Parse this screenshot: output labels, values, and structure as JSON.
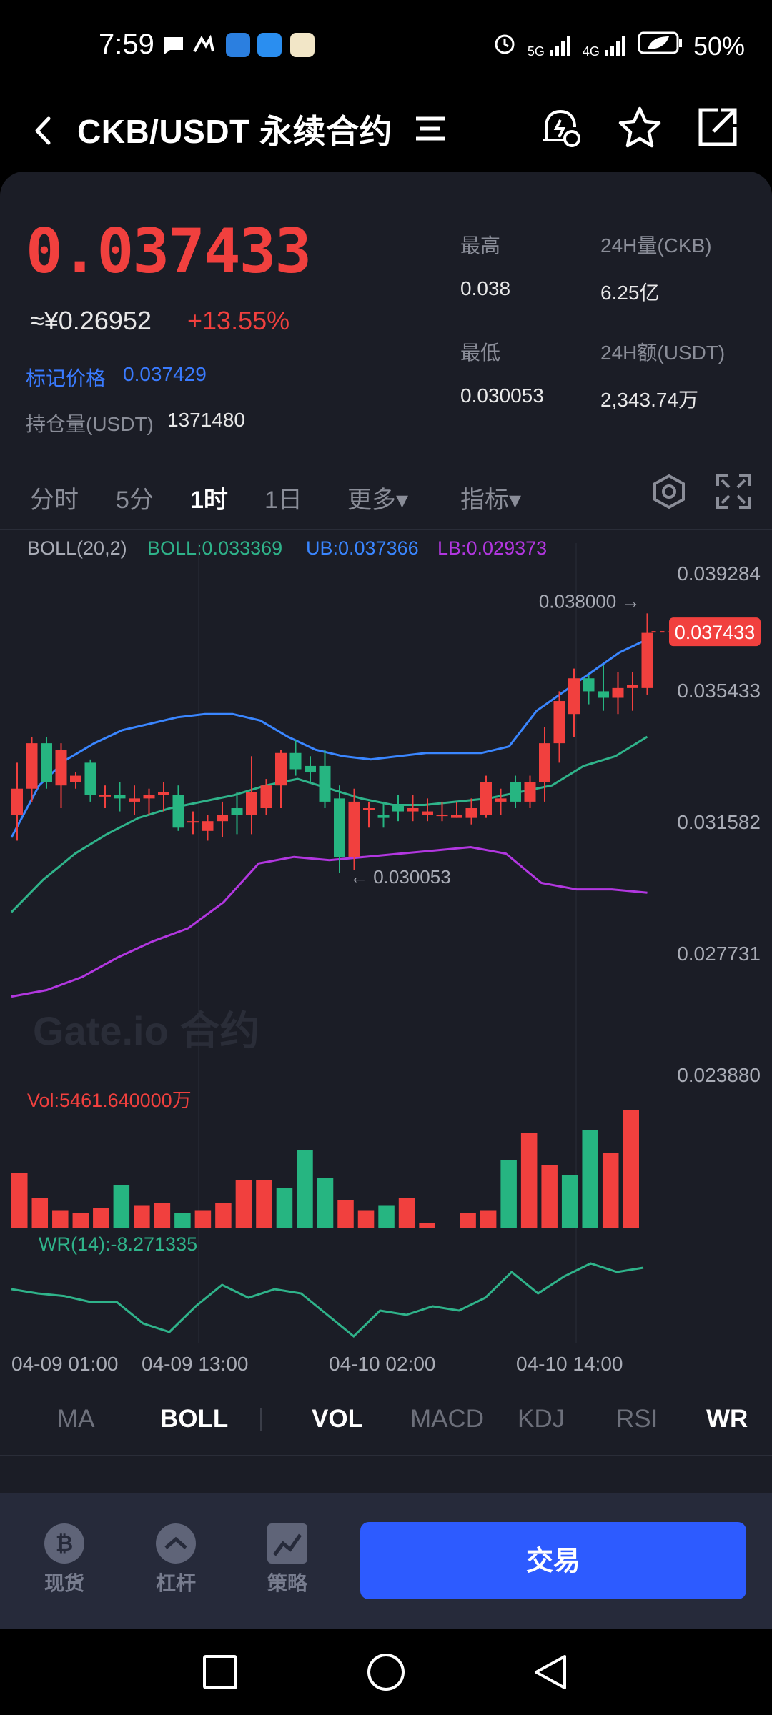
{
  "status_bar": {
    "time": "7:59",
    "battery": "50%",
    "network1": "5G",
    "network2": "4G"
  },
  "header": {
    "title": "CKB/USDT 永续合约"
  },
  "ticker": {
    "last_price": "0.037433",
    "cny_price": "≈¥0.26952",
    "change_pct": "+13.55%",
    "mark_price_label": "标记价格",
    "mark_price": "0.037429",
    "open_interest_label": "持仓量(USDT)",
    "open_interest": "1371480",
    "high_label": "最高",
    "high": "0.038",
    "low_label": "最低",
    "low": "0.030053",
    "vol_label": "24H量(CKB)",
    "vol": "6.25亿",
    "turnover_label": "24H额(USDT)",
    "turnover": "2,343.74万"
  },
  "timeframes": [
    "分时",
    "5分",
    "1时",
    "1日",
    "更多▾",
    "指标▾"
  ],
  "timeframe_active": "1时",
  "legends": {
    "boll_name": "BOLL(20,2)",
    "boll": "BOLL:0.033369",
    "ub": "UB:0.037366",
    "lb": "LB:0.029373",
    "vol": "Vol:5461.640000万",
    "wr": "WR(14):-8.271335"
  },
  "watermark": "Gate.io 合约",
  "indicator_tabs": [
    "MA",
    "BOLL",
    "VOL",
    "MACD",
    "KDJ",
    "RSI",
    "WR"
  ],
  "indicator_tabs_active": [
    "BOLL",
    "VOL",
    "WR"
  ],
  "bottom_nav": {
    "spot": "现货",
    "margin": "杠杆",
    "strategy": "策略",
    "trade": "交易"
  },
  "colors": {
    "up": "#f1403e",
    "down": "#26b581",
    "ub": "#3a86ff",
    "mid": "#2fb38a",
    "lb": "#b237e0",
    "accent": "#2d5bff"
  },
  "chart_data": {
    "type": "candlestick",
    "price_axis_ticks": [
      "0.039284",
      "0.035433",
      "0.031582",
      "0.027731",
      "0.023880"
    ],
    "x_tick_labels": [
      "04-09 01:00",
      "04-09 13:00",
      "04-10 02:00",
      "04-10 14:00"
    ],
    "current_price_tag": "0.037433",
    "max_annotation": "0.038000 →",
    "min_annotation": "← 0.030053",
    "candles": [
      {
        "o": 0.0318,
        "h": 0.0334,
        "l": 0.031,
        "c": 0.0326
      },
      {
        "o": 0.0326,
        "h": 0.0342,
        "l": 0.0322,
        "c": 0.034
      },
      {
        "o": 0.034,
        "h": 0.0342,
        "l": 0.0326,
        "c": 0.0328
      },
      {
        "o": 0.0327,
        "h": 0.034,
        "l": 0.032,
        "c": 0.0338
      },
      {
        "o": 0.0328,
        "h": 0.0331,
        "l": 0.0326,
        "c": 0.033
      },
      {
        "o": 0.0334,
        "h": 0.0335,
        "l": 0.0322,
        "c": 0.0324
      },
      {
        "o": 0.0324,
        "h": 0.0327,
        "l": 0.032,
        "c": 0.0324
      },
      {
        "o": 0.0324,
        "h": 0.0328,
        "l": 0.0319,
        "c": 0.0323
      },
      {
        "o": 0.0322,
        "h": 0.0327,
        "l": 0.0318,
        "c": 0.0323
      },
      {
        "o": 0.0323,
        "h": 0.0326,
        "l": 0.0318,
        "c": 0.0324
      },
      {
        "o": 0.0324,
        "h": 0.0328,
        "l": 0.0319,
        "c": 0.0325
      },
      {
        "o": 0.0324,
        "h": 0.0327,
        "l": 0.0313,
        "c": 0.0314
      },
      {
        "o": 0.0316,
        "h": 0.0319,
        "l": 0.0312,
        "c": 0.0316
      },
      {
        "o": 0.0313,
        "h": 0.0318,
        "l": 0.031,
        "c": 0.0316
      },
      {
        "o": 0.0316,
        "h": 0.0322,
        "l": 0.0311,
        "c": 0.0318
      },
      {
        "o": 0.032,
        "h": 0.0325,
        "l": 0.0312,
        "c": 0.0318
      },
      {
        "o": 0.0318,
        "h": 0.0336,
        "l": 0.0312,
        "c": 0.0325
      },
      {
        "o": 0.032,
        "h": 0.0329,
        "l": 0.0318,
        "c": 0.0327
      },
      {
        "o": 0.0327,
        "h": 0.0338,
        "l": 0.032,
        "c": 0.0337
      },
      {
        "o": 0.0337,
        "h": 0.0341,
        "l": 0.033,
        "c": 0.0332
      },
      {
        "o": 0.0333,
        "h": 0.0336,
        "l": 0.0328,
        "c": 0.0331
      },
      {
        "o": 0.0333,
        "h": 0.0338,
        "l": 0.032,
        "c": 0.0322
      },
      {
        "o": 0.0323,
        "h": 0.0327,
        "l": 0.03,
        "c": 0.0305
      },
      {
        "o": 0.0305,
        "h": 0.0326,
        "l": 0.0301,
        "c": 0.0322
      },
      {
        "o": 0.032,
        "h": 0.0322,
        "l": 0.0314,
        "c": 0.032
      },
      {
        "o": 0.0318,
        "h": 0.0322,
        "l": 0.0314,
        "c": 0.0317
      },
      {
        "o": 0.0321,
        "h": 0.0324,
        "l": 0.0316,
        "c": 0.0319
      },
      {
        "o": 0.0319,
        "h": 0.0324,
        "l": 0.0316,
        "c": 0.032
      },
      {
        "o": 0.0318,
        "h": 0.0323,
        "l": 0.0316,
        "c": 0.0319
      },
      {
        "o": 0.0318,
        "h": 0.0322,
        "l": 0.0316,
        "c": 0.0318
      },
      {
        "o": 0.0317,
        "h": 0.0322,
        "l": 0.0317,
        "c": 0.0318
      },
      {
        "o": 0.0317,
        "h": 0.0323,
        "l": 0.0315,
        "c": 0.032
      },
      {
        "o": 0.0318,
        "h": 0.033,
        "l": 0.0317,
        "c": 0.0328
      },
      {
        "o": 0.0322,
        "h": 0.0326,
        "l": 0.0318,
        "c": 0.0323
      },
      {
        "o": 0.0328,
        "h": 0.033,
        "l": 0.032,
        "c": 0.0322
      },
      {
        "o": 0.0322,
        "h": 0.033,
        "l": 0.032,
        "c": 0.0328
      },
      {
        "o": 0.0328,
        "h": 0.0345,
        "l": 0.0322,
        "c": 0.034
      },
      {
        "o": 0.034,
        "h": 0.0356,
        "l": 0.0334,
        "c": 0.0353
      },
      {
        "o": 0.0349,
        "h": 0.0363,
        "l": 0.0342,
        "c": 0.036
      },
      {
        "o": 0.036,
        "h": 0.0361,
        "l": 0.0352,
        "c": 0.0356
      },
      {
        "o": 0.0356,
        "h": 0.0364,
        "l": 0.035,
        "c": 0.0354
      },
      {
        "o": 0.0354,
        "h": 0.0362,
        "l": 0.0349,
        "c": 0.0357
      },
      {
        "o": 0.0357,
        "h": 0.0362,
        "l": 0.035,
        "c": 0.0358
      },
      {
        "o": 0.0357,
        "h": 0.038,
        "l": 0.0355,
        "c": 0.0374
      }
    ],
    "volume": [
      22,
      12,
      7,
      6,
      8,
      17,
      9,
      10,
      6,
      7,
      10,
      19,
      19,
      16,
      31,
      20,
      11,
      7,
      9,
      12,
      2,
      0,
      6,
      7,
      27,
      38,
      25,
      21,
      39,
      30,
      47
    ],
    "boll_ub": [
      0.0311,
      0.0327,
      0.0335,
      0.034,
      0.0344,
      0.0346,
      0.0348,
      0.0349,
      0.0349,
      0.0347,
      0.0342,
      0.0338,
      0.0336,
      0.0335,
      0.0336,
      0.0337,
      0.0337,
      0.0337,
      0.0339,
      0.035,
      0.0356,
      0.0362,
      0.0368,
      0.0372
    ],
    "boll_mid": [
      0.0288,
      0.0298,
      0.0306,
      0.0312,
      0.0317,
      0.032,
      0.0322,
      0.0324,
      0.0327,
      0.0329,
      0.0326,
      0.0323,
      0.0321,
      0.0321,
      0.0322,
      0.0323,
      0.0325,
      0.0327,
      0.0333,
      0.0336,
      0.0342
    ],
    "boll_lb": [
      0.0262,
      0.0264,
      0.0268,
      0.0274,
      0.0279,
      0.0283,
      0.0291,
      0.0303,
      0.0305,
      0.0304,
      0.0305,
      0.0306,
      0.0307,
      0.0308,
      0.0306,
      0.0297,
      0.0295,
      0.0295,
      0.0294
    ],
    "wr": [
      40,
      45,
      48,
      55,
      55,
      80,
      90,
      60,
      35,
      50,
      40,
      45,
      70,
      95,
      65,
      70,
      60,
      65,
      50,
      20,
      45,
      25,
      10,
      20,
      15
    ]
  }
}
